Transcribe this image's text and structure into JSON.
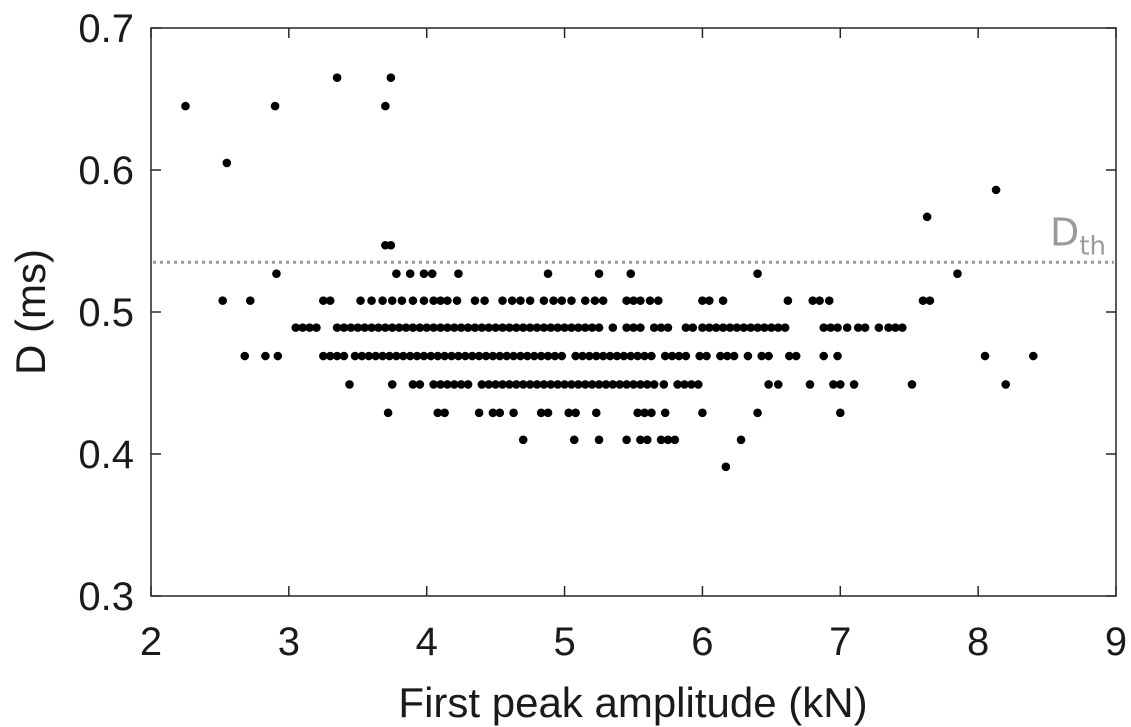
{
  "chart_data": {
    "type": "scatter",
    "title": "",
    "xlabel": "First peak amplitude (kN)",
    "ylabel": "D (ms)",
    "xlim": [
      2,
      9
    ],
    "ylim": [
      0.3,
      0.7
    ],
    "xticks": [
      "2",
      "3",
      "4",
      "5",
      "6",
      "7",
      "8",
      "9"
    ],
    "yticks": [
      "0.3",
      "0.4",
      "0.5",
      "0.6",
      "0.7"
    ],
    "grid": false,
    "legend": "none",
    "marker_color": "#000000",
    "threshold": {
      "label_main": "D",
      "label_sub": "th",
      "y": 0.535,
      "color": "#9a9a9a",
      "style": "dotted"
    },
    "series": [
      {
        "points": [
          [
            2.25,
            0.645
          ],
          [
            2.9,
            0.645
          ],
          [
            3.35,
            0.665
          ],
          [
            3.7,
            0.645
          ],
          [
            3.74,
            0.665
          ],
          [
            2.55,
            0.605
          ],
          [
            3.7,
            0.547
          ],
          [
            3.74,
            0.547
          ],
          [
            7.63,
            0.567
          ],
          [
            8.13,
            0.586
          ],
          [
            2.91,
            0.527
          ],
          [
            3.78,
            0.527
          ],
          [
            3.88,
            0.527
          ],
          [
            3.98,
            0.527
          ],
          [
            4.04,
            0.527
          ],
          [
            4.23,
            0.527
          ],
          [
            4.88,
            0.527
          ],
          [
            5.25,
            0.527
          ],
          [
            5.48,
            0.527
          ],
          [
            6.4,
            0.527
          ],
          [
            7.85,
            0.527
          ],
          [
            2.52,
            0.508
          ],
          [
            2.72,
            0.508
          ],
          [
            3.25,
            0.508
          ],
          [
            3.3,
            0.508
          ],
          [
            3.52,
            0.508
          ],
          [
            3.6,
            0.508
          ],
          [
            3.68,
            0.508
          ],
          [
            3.75,
            0.508
          ],
          [
            3.82,
            0.508
          ],
          [
            3.9,
            0.508
          ],
          [
            3.98,
            0.508
          ],
          [
            4.05,
            0.508
          ],
          [
            4.1,
            0.508
          ],
          [
            4.15,
            0.508
          ],
          [
            4.22,
            0.508
          ],
          [
            4.35,
            0.508
          ],
          [
            4.42,
            0.508
          ],
          [
            4.55,
            0.508
          ],
          [
            4.62,
            0.508
          ],
          [
            4.68,
            0.508
          ],
          [
            4.75,
            0.508
          ],
          [
            4.85,
            0.508
          ],
          [
            4.92,
            0.508
          ],
          [
            4.98,
            0.508
          ],
          [
            5.05,
            0.508
          ],
          [
            5.15,
            0.508
          ],
          [
            5.22,
            0.508
          ],
          [
            5.28,
            0.508
          ],
          [
            5.45,
            0.508
          ],
          [
            5.5,
            0.508
          ],
          [
            5.55,
            0.508
          ],
          [
            5.62,
            0.508
          ],
          [
            5.68,
            0.508
          ],
          [
            6.0,
            0.508
          ],
          [
            6.05,
            0.508
          ],
          [
            6.15,
            0.508
          ],
          [
            6.62,
            0.508
          ],
          [
            6.8,
            0.508
          ],
          [
            6.85,
            0.508
          ],
          [
            6.92,
            0.508
          ],
          [
            7.6,
            0.508
          ],
          [
            7.65,
            0.508
          ],
          [
            3.05,
            0.489
          ],
          [
            3.1,
            0.489
          ],
          [
            3.15,
            0.489
          ],
          [
            3.2,
            0.489
          ],
          [
            3.35,
            0.489
          ],
          [
            3.4,
            0.489
          ],
          [
            3.45,
            0.489
          ],
          [
            3.5,
            0.489
          ],
          [
            3.55,
            0.489
          ],
          [
            3.6,
            0.489
          ],
          [
            3.65,
            0.489
          ],
          [
            3.7,
            0.489
          ],
          [
            3.75,
            0.489
          ],
          [
            3.8,
            0.489
          ],
          [
            3.85,
            0.489
          ],
          [
            3.9,
            0.489
          ],
          [
            3.95,
            0.489
          ],
          [
            4.0,
            0.489
          ],
          [
            4.05,
            0.489
          ],
          [
            4.1,
            0.489
          ],
          [
            4.15,
            0.489
          ],
          [
            4.2,
            0.489
          ],
          [
            4.25,
            0.489
          ],
          [
            4.3,
            0.489
          ],
          [
            4.35,
            0.489
          ],
          [
            4.4,
            0.489
          ],
          [
            4.45,
            0.489
          ],
          [
            4.5,
            0.489
          ],
          [
            4.55,
            0.489
          ],
          [
            4.6,
            0.489
          ],
          [
            4.65,
            0.489
          ],
          [
            4.7,
            0.489
          ],
          [
            4.75,
            0.489
          ],
          [
            4.8,
            0.489
          ],
          [
            4.85,
            0.489
          ],
          [
            4.9,
            0.489
          ],
          [
            4.95,
            0.489
          ],
          [
            5.0,
            0.489
          ],
          [
            5.05,
            0.489
          ],
          [
            5.1,
            0.489
          ],
          [
            5.15,
            0.489
          ],
          [
            5.2,
            0.489
          ],
          [
            5.25,
            0.489
          ],
          [
            5.35,
            0.489
          ],
          [
            5.45,
            0.489
          ],
          [
            5.5,
            0.489
          ],
          [
            5.55,
            0.489
          ],
          [
            5.65,
            0.489
          ],
          [
            5.7,
            0.489
          ],
          [
            5.75,
            0.489
          ],
          [
            5.88,
            0.489
          ],
          [
            5.93,
            0.489
          ],
          [
            6.0,
            0.489
          ],
          [
            6.05,
            0.489
          ],
          [
            6.1,
            0.489
          ],
          [
            6.15,
            0.489
          ],
          [
            6.2,
            0.489
          ],
          [
            6.25,
            0.489
          ],
          [
            6.3,
            0.489
          ],
          [
            6.35,
            0.489
          ],
          [
            6.4,
            0.489
          ],
          [
            6.45,
            0.489
          ],
          [
            6.5,
            0.489
          ],
          [
            6.55,
            0.489
          ],
          [
            6.6,
            0.489
          ],
          [
            6.88,
            0.489
          ],
          [
            6.93,
            0.489
          ],
          [
            6.98,
            0.489
          ],
          [
            7.05,
            0.489
          ],
          [
            7.13,
            0.489
          ],
          [
            7.18,
            0.489
          ],
          [
            7.28,
            0.489
          ],
          [
            7.35,
            0.489
          ],
          [
            7.4,
            0.489
          ],
          [
            7.45,
            0.489
          ],
          [
            3.25,
            0.469
          ],
          [
            3.3,
            0.469
          ],
          [
            3.35,
            0.469
          ],
          [
            3.4,
            0.469
          ],
          [
            3.48,
            0.469
          ],
          [
            3.53,
            0.469
          ],
          [
            3.58,
            0.469
          ],
          [
            3.63,
            0.469
          ],
          [
            3.68,
            0.469
          ],
          [
            3.73,
            0.469
          ],
          [
            3.78,
            0.469
          ],
          [
            3.83,
            0.469
          ],
          [
            3.88,
            0.469
          ],
          [
            3.93,
            0.469
          ],
          [
            3.98,
            0.469
          ],
          [
            4.03,
            0.469
          ],
          [
            4.08,
            0.469
          ],
          [
            4.13,
            0.469
          ],
          [
            4.18,
            0.469
          ],
          [
            4.23,
            0.469
          ],
          [
            4.28,
            0.469
          ],
          [
            4.33,
            0.469
          ],
          [
            4.38,
            0.469
          ],
          [
            4.43,
            0.469
          ],
          [
            4.48,
            0.469
          ],
          [
            4.53,
            0.469
          ],
          [
            4.58,
            0.469
          ],
          [
            4.63,
            0.469
          ],
          [
            4.68,
            0.469
          ],
          [
            4.73,
            0.469
          ],
          [
            4.78,
            0.469
          ],
          [
            4.83,
            0.469
          ],
          [
            4.88,
            0.469
          ],
          [
            4.93,
            0.469
          ],
          [
            4.98,
            0.469
          ],
          [
            5.08,
            0.469
          ],
          [
            5.13,
            0.469
          ],
          [
            5.18,
            0.469
          ],
          [
            5.23,
            0.469
          ],
          [
            5.28,
            0.469
          ],
          [
            5.33,
            0.469
          ],
          [
            5.38,
            0.469
          ],
          [
            5.43,
            0.469
          ],
          [
            5.48,
            0.469
          ],
          [
            5.53,
            0.469
          ],
          [
            5.58,
            0.469
          ],
          [
            5.63,
            0.469
          ],
          [
            5.73,
            0.469
          ],
          [
            5.78,
            0.469
          ],
          [
            5.83,
            0.469
          ],
          [
            5.88,
            0.469
          ],
          [
            5.98,
            0.469
          ],
          [
            6.03,
            0.469
          ],
          [
            6.13,
            0.469
          ],
          [
            6.18,
            0.469
          ],
          [
            6.23,
            0.469
          ],
          [
            6.33,
            0.469
          ],
          [
            6.43,
            0.469
          ],
          [
            6.48,
            0.469
          ],
          [
            6.63,
            0.469
          ],
          [
            6.68,
            0.469
          ],
          [
            6.88,
            0.469
          ],
          [
            6.98,
            0.469
          ],
          [
            2.68,
            0.469
          ],
          [
            2.83,
            0.469
          ],
          [
            2.92,
            0.469
          ],
          [
            8.05,
            0.469
          ],
          [
            8.4,
            0.469
          ],
          [
            3.44,
            0.449
          ],
          [
            3.75,
            0.449
          ],
          [
            3.9,
            0.449
          ],
          [
            3.95,
            0.449
          ],
          [
            4.05,
            0.449
          ],
          [
            4.1,
            0.449
          ],
          [
            4.15,
            0.449
          ],
          [
            4.2,
            0.449
          ],
          [
            4.25,
            0.449
          ],
          [
            4.3,
            0.449
          ],
          [
            4.4,
            0.449
          ],
          [
            4.45,
            0.449
          ],
          [
            4.5,
            0.449
          ],
          [
            4.55,
            0.449
          ],
          [
            4.6,
            0.449
          ],
          [
            4.65,
            0.449
          ],
          [
            4.7,
            0.449
          ],
          [
            4.75,
            0.449
          ],
          [
            4.8,
            0.449
          ],
          [
            4.85,
            0.449
          ],
          [
            4.9,
            0.449
          ],
          [
            4.95,
            0.449
          ],
          [
            5.0,
            0.449
          ],
          [
            5.05,
            0.449
          ],
          [
            5.1,
            0.449
          ],
          [
            5.15,
            0.449
          ],
          [
            5.2,
            0.449
          ],
          [
            5.25,
            0.449
          ],
          [
            5.3,
            0.449
          ],
          [
            5.35,
            0.449
          ],
          [
            5.4,
            0.449
          ],
          [
            5.45,
            0.449
          ],
          [
            5.5,
            0.449
          ],
          [
            5.55,
            0.449
          ],
          [
            5.6,
            0.449
          ],
          [
            5.65,
            0.449
          ],
          [
            5.72,
            0.449
          ],
          [
            5.82,
            0.449
          ],
          [
            5.87,
            0.449
          ],
          [
            5.92,
            0.449
          ],
          [
            5.97,
            0.449
          ],
          [
            6.48,
            0.449
          ],
          [
            6.55,
            0.449
          ],
          [
            6.78,
            0.449
          ],
          [
            6.95,
            0.449
          ],
          [
            7.0,
            0.449
          ],
          [
            7.1,
            0.449
          ],
          [
            7.52,
            0.449
          ],
          [
            8.2,
            0.449
          ],
          [
            3.72,
            0.429
          ],
          [
            4.08,
            0.429
          ],
          [
            4.13,
            0.429
          ],
          [
            4.38,
            0.429
          ],
          [
            4.48,
            0.429
          ],
          [
            4.53,
            0.429
          ],
          [
            4.63,
            0.429
          ],
          [
            4.83,
            0.429
          ],
          [
            4.88,
            0.429
          ],
          [
            5.03,
            0.429
          ],
          [
            5.08,
            0.429
          ],
          [
            5.23,
            0.429
          ],
          [
            5.53,
            0.429
          ],
          [
            5.58,
            0.429
          ],
          [
            5.63,
            0.429
          ],
          [
            5.73,
            0.429
          ],
          [
            6.0,
            0.429
          ],
          [
            6.4,
            0.429
          ],
          [
            7.0,
            0.429
          ],
          [
            4.7,
            0.41
          ],
          [
            5.07,
            0.41
          ],
          [
            5.25,
            0.41
          ],
          [
            5.45,
            0.41
          ],
          [
            5.55,
            0.41
          ],
          [
            5.6,
            0.41
          ],
          [
            5.7,
            0.41
          ],
          [
            5.75,
            0.41
          ],
          [
            5.8,
            0.41
          ],
          [
            6.28,
            0.41
          ],
          [
            6.17,
            0.391
          ]
        ]
      }
    ]
  }
}
